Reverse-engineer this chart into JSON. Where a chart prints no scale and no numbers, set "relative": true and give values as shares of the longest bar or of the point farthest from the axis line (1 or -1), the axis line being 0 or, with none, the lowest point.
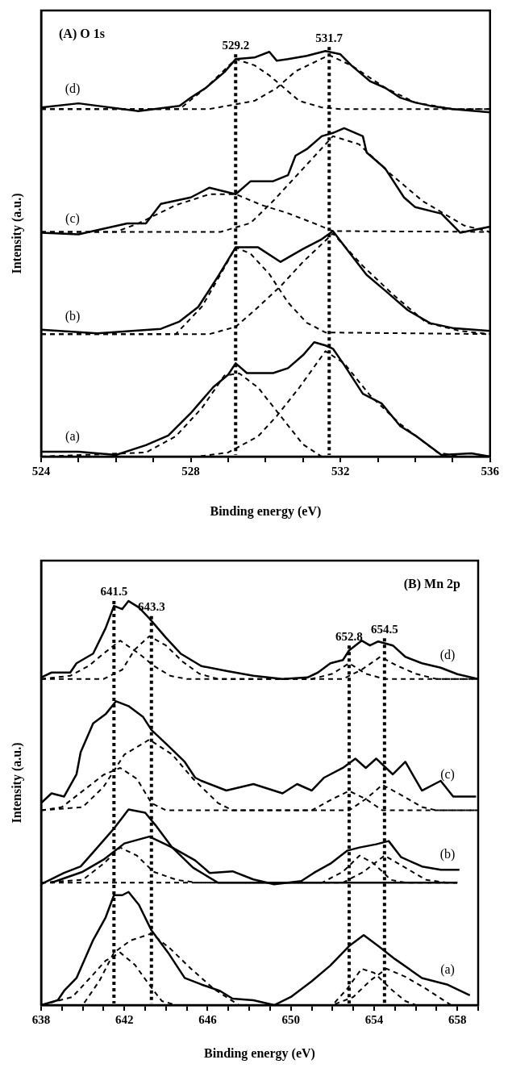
{
  "chart_data": [
    {
      "type": "line",
      "title": "(A) O 1s",
      "xlabel": "Binding energy (eV)",
      "ylabel": "Intensity (a.u.)",
      "relative": true,
      "marker": "none",
      "xlim": [
        524,
        536
      ],
      "xticks": [
        524,
        {
          "value": 525,
          "label": null
        },
        {
          "value": 526,
          "label": null
        },
        {
          "value": 527,
          "label": null
        },
        528,
        {
          "value": 529,
          "label": null
        },
        {
          "value": 530,
          "label": null
        },
        {
          "value": 531,
          "label": null
        },
        532,
        {
          "value": 533,
          "label": null
        },
        {
          "value": 534,
          "label": null
        },
        {
          "value": 535,
          "label": null
        },
        536
      ],
      "ref_lines": [
        {
          "axis": "x",
          "value": 529.2,
          "label": "529.2",
          "line_style": "dotted"
        },
        {
          "axis": "x",
          "value": 531.7,
          "label": "531.7",
          "line_style": "dotted"
        }
      ],
      "series": [
        {
          "name": "(d)",
          "color": "#000000",
          "x": [
            524.0,
            525.0,
            526.6,
            527.7,
            528.0,
            528.4,
            528.9,
            529.2,
            529.7,
            530.1,
            530.3,
            530.6,
            531.1,
            531.6,
            532.0,
            532.3,
            532.8,
            533.2,
            533.6,
            534.0,
            534.4,
            535.0,
            536.0
          ],
          "values": [
            0.861,
            0.871,
            0.852,
            0.865,
            0.885,
            0.909,
            0.948,
            0.98,
            0.984,
            0.998,
            0.976,
            0.98,
            0.988,
            1.0,
            0.992,
            0.964,
            0.925,
            0.909,
            0.885,
            0.873,
            0.865,
            0.857,
            0.849
          ]
        },
        {
          "color": "#000000",
          "line_style": "dashed",
          "x": [
            524,
            527.7,
            528.4,
            529.2,
            529.7,
            530.1,
            530.9,
            531.5,
            532,
            536
          ],
          "values": [
            0.857,
            0.857,
            0.909,
            0.98,
            0.965,
            0.94,
            0.877,
            0.861,
            0.857,
            0.857
          ]
        },
        {
          "color": "#000000",
          "line_style": "dashed",
          "x": [
            524,
            528.5,
            529.7,
            530.3,
            530.8,
            531.7,
            532.3,
            533.2,
            534,
            535,
            536
          ],
          "values": [
            0.857,
            0.857,
            0.877,
            0.909,
            0.95,
            0.99,
            0.964,
            0.909,
            0.873,
            0.857,
            0.857
          ]
        },
        {
          "name": "(c)",
          "color": "#000000",
          "x": [
            524.0,
            525.0,
            526.3,
            526.8,
            527.2,
            528.0,
            528.5,
            529.2,
            529.6,
            530.2,
            530.6,
            530.8,
            531.1,
            531.5,
            531.8,
            532.1,
            532.6,
            532.7,
            533.2,
            533.7,
            534.0,
            534.7,
            535.2,
            536.0
          ],
          "values": [
            0.552,
            0.548,
            0.575,
            0.575,
            0.623,
            0.639,
            0.663,
            0.647,
            0.679,
            0.679,
            0.694,
            0.742,
            0.758,
            0.79,
            0.798,
            0.81,
            0.79,
            0.75,
            0.71,
            0.639,
            0.615,
            0.599,
            0.552,
            0.567
          ]
        },
        {
          "color": "#000000",
          "line_style": "dashed",
          "x": [
            524,
            526,
            526.6,
            527.6,
            528.5,
            529.2,
            529.9,
            530.6,
            531.3,
            531.8,
            536
          ],
          "values": [
            0.554,
            0.554,
            0.575,
            0.62,
            0.647,
            0.647,
            0.62,
            0.6,
            0.575,
            0.556,
            0.554
          ]
        },
        {
          "color": "#000000",
          "line_style": "dashed",
          "x": [
            524,
            528.8,
            529.6,
            530.2,
            531.0,
            531.8,
            532.5,
            533.3,
            534.2,
            535.3,
            536
          ],
          "values": [
            0.554,
            0.554,
            0.576,
            0.63,
            0.71,
            0.79,
            0.77,
            0.7,
            0.63,
            0.57,
            0.554
          ]
        },
        {
          "name": "(b)",
          "color": "#000000",
          "x": [
            524.0,
            525.5,
            527.2,
            527.7,
            528.2,
            528.7,
            529.2,
            529.8,
            530.4,
            531.0,
            531.5,
            531.8,
            532.3,
            532.7,
            533.2,
            533.8,
            534.4,
            535.0,
            536.0
          ],
          "values": [
            0.313,
            0.304,
            0.315,
            0.333,
            0.369,
            0.44,
            0.516,
            0.516,
            0.48,
            0.512,
            0.536,
            0.556,
            0.496,
            0.448,
            0.409,
            0.361,
            0.329,
            0.317,
            0.31
          ]
        },
        {
          "color": "#000000",
          "line_style": "dashed",
          "x": [
            524,
            527.6,
            528.3,
            528.8,
            529.2,
            529.6,
            530.1,
            530.6,
            531.1,
            531.6,
            536
          ],
          "values": [
            0.302,
            0.302,
            0.37,
            0.45,
            0.516,
            0.5,
            0.45,
            0.38,
            0.33,
            0.306,
            0.302
          ]
        },
        {
          "color": "#000000",
          "line_style": "dashed",
          "x": [
            524,
            528.5,
            529.2,
            529.7,
            530.4,
            531.0,
            531.8,
            532.6,
            533.4,
            534.3,
            535.2,
            536
          ],
          "values": [
            0.302,
            0.302,
            0.32,
            0.36,
            0.42,
            0.48,
            0.55,
            0.47,
            0.4,
            0.33,
            0.31,
            0.302
          ]
        },
        {
          "name": "(a)",
          "color": "#000000",
          "x": [
            524.0,
            525.0,
            526.0,
            526.8,
            527.4,
            528.0,
            528.6,
            529.0,
            529.2,
            529.5,
            530.2,
            530.6,
            531.0,
            531.3,
            531.6,
            531.8,
            532.1,
            532.6,
            533.1,
            533.6,
            534.0,
            534.7,
            535.5,
            536.0
          ],
          "values": [
            0.012,
            0.012,
            0.004,
            0.028,
            0.052,
            0.107,
            0.171,
            0.202,
            0.23,
            0.206,
            0.206,
            0.218,
            0.25,
            0.282,
            0.274,
            0.266,
            0.226,
            0.155,
            0.131,
            0.075,
            0.052,
            0.004,
            0.008,
            0.0
          ]
        },
        {
          "color": "#000000",
          "line_style": "dashed",
          "x": [
            524,
            526.8,
            527.6,
            528.3,
            528.9,
            529.3,
            529.8,
            530.4,
            531.0,
            531.5,
            536
          ],
          "values": [
            0,
            0.01,
            0.05,
            0.12,
            0.2,
            0.205,
            0.17,
            0.1,
            0.03,
            0,
            0
          ]
        },
        {
          "color": "#000000",
          "line_style": "dashed",
          "x": [
            524,
            528.2,
            529.0,
            529.8,
            530.3,
            530.9,
            531.6,
            532.1,
            532.8,
            533.6,
            534.6,
            535.2,
            536
          ],
          "values": [
            0,
            0,
            0.01,
            0.05,
            0.1,
            0.17,
            0.26,
            0.23,
            0.15,
            0.08,
            0.01,
            0,
            0
          ]
        }
      ]
    },
    {
      "type": "line",
      "title": "(B) Mn 2p",
      "xlabel": "Binding energy (eV)",
      "ylabel": "Intensity (a.u.)",
      "relative": true,
      "marker": "none",
      "xlim": [
        638,
        659
      ],
      "xticks": [
        638,
        {
          "value": 639,
          "label": null
        },
        {
          "value": 640,
          "label": null
        },
        {
          "value": 641,
          "label": null
        },
        642,
        {
          "value": 643,
          "label": null
        },
        {
          "value": 644,
          "label": null
        },
        {
          "value": 645,
          "label": null
        },
        646,
        {
          "value": 647,
          "label": null
        },
        {
          "value": 648,
          "label": null
        },
        {
          "value": 649,
          "label": null
        },
        650,
        {
          "value": 651,
          "label": null
        },
        {
          "value": 652,
          "label": null
        },
        {
          "value": 653,
          "label": null
        },
        654,
        {
          "value": 655,
          "label": null
        },
        {
          "value": 656,
          "label": null
        },
        {
          "value": 657,
          "label": null
        },
        658,
        {
          "value": 659,
          "label": null
        }
      ],
      "ref_lines": [
        {
          "axis": "x",
          "value": 641.5,
          "label": "641.5",
          "line_style": "dotted"
        },
        {
          "axis": "x",
          "value": 643.3,
          "label": "643.3",
          "line_style": "dotted"
        },
        {
          "axis": "x",
          "value": 652.8,
          "label": "652.8",
          "line_style": "dotted"
        },
        {
          "axis": "x",
          "value": 654.5,
          "label": "654.5",
          "line_style": "dotted"
        }
      ],
      "series": [
        {
          "name": "(d)",
          "color": "#000000",
          "x": [
            638.0,
            638.5,
            639.4,
            639.7,
            640.5,
            641.1,
            641.5,
            641.9,
            642.2,
            642.7,
            643.2,
            644.0,
            644.7,
            645.7,
            646.9,
            648.2,
            649.6,
            650.8,
            651.3,
            651.9,
            652.5,
            652.8,
            653.4,
            653.8,
            654.2,
            654.9,
            655.5,
            656.3,
            657.2,
            658.0,
            659.0
          ],
          "values": [
            0.811,
            0.823,
            0.823,
            0.846,
            0.87,
            0.933,
            0.988,
            0.98,
            1.0,
            0.984,
            0.957,
            0.909,
            0.87,
            0.839,
            0.827,
            0.815,
            0.807,
            0.811,
            0.823,
            0.846,
            0.854,
            0.878,
            0.902,
            0.89,
            0.9,
            0.89,
            0.862,
            0.846,
            0.835,
            0.819,
            0.807
          ]
        },
        {
          "color": "#000000",
          "line_style": "dashed",
          "x": [
            638,
            639.4,
            640.3,
            641,
            641.8,
            642.7,
            643.4,
            644.2,
            645,
            651,
            652,
            652.8,
            653.6,
            654.5,
            659
          ],
          "values": [
            0.807,
            0.815,
            0.84,
            0.87,
            0.902,
            0.87,
            0.84,
            0.815,
            0.807,
            0.807,
            0.82,
            0.846,
            0.82,
            0.807,
            0.807
          ]
        },
        {
          "color": "#000000",
          "line_style": "dashed",
          "x": [
            638,
            641,
            641.9,
            642.5,
            643.2,
            644,
            644.8,
            645.6,
            646.5,
            652.5,
            653.4,
            654.3,
            655.1,
            656,
            657,
            659
          ],
          "values": [
            0.807,
            0.807,
            0.83,
            0.88,
            0.913,
            0.89,
            0.85,
            0.82,
            0.807,
            0.807,
            0.83,
            0.862,
            0.84,
            0.82,
            0.807,
            0.807
          ]
        },
        {
          "name": "(c)",
          "color": "#000000",
          "x": [
            638.0,
            638.5,
            639.1,
            639.7,
            639.9,
            640.5,
            641.1,
            641.6,
            642.2,
            642.9,
            643.3,
            644.1,
            644.9,
            645.4,
            645.7,
            646.9,
            648.2,
            649.6,
            650.3,
            651.0,
            651.6,
            652.5,
            653.1,
            653.6,
            654.1,
            654.9,
            655.5,
            656.3,
            657.2,
            657.8,
            658.9
          ],
          "values": [
            0.5,
            0.524,
            0.516,
            0.571,
            0.626,
            0.697,
            0.72,
            0.752,
            0.74,
            0.713,
            0.681,
            0.642,
            0.602,
            0.563,
            0.555,
            0.531,
            0.547,
            0.524,
            0.547,
            0.531,
            0.563,
            0.587,
            0.61,
            0.587,
            0.61,
            0.571,
            0.602,
            0.531,
            0.555,
            0.516,
            0.516
          ]
        },
        {
          "color": "#000000",
          "line_style": "dashed",
          "x": [
            638,
            639,
            640,
            641,
            641.8,
            642.6,
            643.3,
            644,
            651,
            652,
            652.8,
            653.6,
            654.4,
            659
          ],
          "values": [
            0.482,
            0.49,
            0.53,
            0.57,
            0.587,
            0.56,
            0.5,
            0.482,
            0.482,
            0.51,
            0.53,
            0.51,
            0.482,
            0.482
          ]
        },
        {
          "color": "#000000",
          "line_style": "dashed",
          "x": [
            638,
            640,
            641,
            642,
            643.2,
            644.3,
            645.3,
            646.5,
            647.2,
            652.8,
            653.6,
            654.4,
            655.3,
            656.3,
            657,
            659
          ],
          "values": [
            0.482,
            0.49,
            0.54,
            0.62,
            0.657,
            0.62,
            0.56,
            0.5,
            0.482,
            0.482,
            0.51,
            0.545,
            0.52,
            0.49,
            0.482,
            0.482
          ]
        },
        {
          "name": "(b)",
          "color": "#000000",
          "x": [
            638.0,
            639.1,
            639.9,
            640.5,
            641.5,
            642.2,
            643.0,
            643.5,
            644.3,
            645.4,
            646.1,
            647.2,
            648.2,
            649.2,
            650.5,
            651.1,
            651.9,
            652.7,
            653.3,
            654.1,
            654.7,
            655.3,
            656.3,
            657.2,
            658.1
          ],
          "values": [
            0.299,
            0.327,
            0.343,
            0.378,
            0.437,
            0.484,
            0.476,
            0.445,
            0.39,
            0.358,
            0.327,
            0.331,
            0.311,
            0.299,
            0.307,
            0.327,
            0.35,
            0.382,
            0.39,
            0.398,
            0.406,
            0.366,
            0.343,
            0.335,
            0.335
          ]
        },
        {
          "color": "#000000",
          "x": [
            638.5,
            640,
            641,
            642,
            643.2,
            644.3,
            645.3,
            646.5,
            658
          ],
          "values": [
            0.303,
            0.33,
            0.36,
            0.4,
            0.417,
            0.39,
            0.34,
            0.303,
            0.303
          ]
        },
        {
          "color": "#000000",
          "line_style": "dashed",
          "x": [
            638,
            640,
            641,
            641.8,
            642.6,
            643.4,
            644.5,
            645.5,
            651.5,
            652.5,
            653.3,
            654,
            654.8,
            655.5,
            658
          ],
          "values": [
            0.303,
            0.31,
            0.35,
            0.39,
            0.37,
            0.33,
            0.31,
            0.303,
            0.303,
            0.33,
            0.37,
            0.35,
            0.31,
            0.303,
            0.303
          ]
        },
        {
          "color": "#000000",
          "line_style": "dashed",
          "x": [
            638,
            652.5,
            653.5,
            654.5,
            655.5,
            656.5,
            657.5,
            658
          ],
          "values": [
            0.303,
            0.303,
            0.33,
            0.37,
            0.34,
            0.31,
            0.303,
            0.303
          ]
        },
        {
          "name": "(a)",
          "color": "#000000",
          "x": [
            638.0,
            638.8,
            639.1,
            639.7,
            640.5,
            641.1,
            641.5,
            641.9,
            642.2,
            642.7,
            643.3,
            644.1,
            644.9,
            645.7,
            646.6,
            647.2,
            648.2,
            649.2,
            650.0,
            651.0,
            651.9,
            652.8,
            653.5,
            654.2,
            655.0,
            656.3,
            657.5,
            658.6
          ],
          "values": [
            0.0,
            0.012,
            0.035,
            0.067,
            0.161,
            0.217,
            0.272,
            0.272,
            0.28,
            0.248,
            0.185,
            0.13,
            0.067,
            0.051,
            0.035,
            0.016,
            0.012,
            0.0,
            0.02,
            0.059,
            0.098,
            0.146,
            0.173,
            0.146,
            0.114,
            0.067,
            0.051,
            0.024
          ]
        },
        {
          "color": "#000000",
          "line_style": "dashed",
          "x": [
            638,
            639.5,
            640.4,
            641.1,
            641.8,
            642.5,
            643.2,
            643.8,
            644.5,
            652,
            652.7,
            653.4,
            654,
            654.8,
            655.5,
            656,
            659
          ],
          "values": [
            0,
            0.02,
            0.07,
            0.11,
            0.13,
            0.1,
            0.05,
            0.01,
            0,
            0,
            0.04,
            0.09,
            0.08,
            0.04,
            0.01,
            0,
            0
          ]
        },
        {
          "color": "#000000",
          "line_style": "dashed",
          "x": [
            638,
            640,
            640.8,
            641.5,
            642.3,
            643.3,
            644.2,
            645.2,
            646.3,
            647.5,
            652,
            653,
            653.8,
            654.6,
            655.5,
            656.5,
            657.7,
            659
          ],
          "values": [
            0,
            0,
            0.06,
            0.13,
            0.16,
            0.177,
            0.14,
            0.09,
            0.04,
            0,
            0,
            0.02,
            0.06,
            0.09,
            0.07,
            0.04,
            0,
            0
          ]
        }
      ]
    }
  ]
}
